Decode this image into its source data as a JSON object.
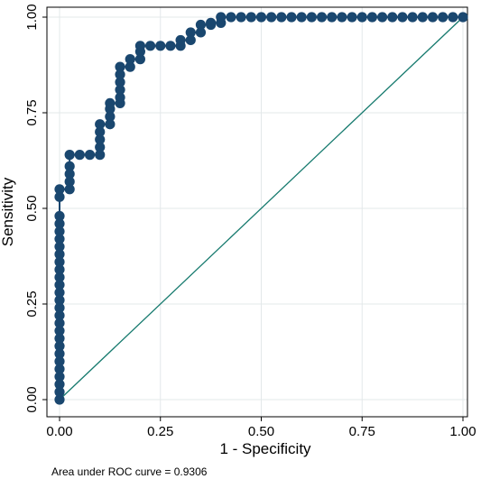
{
  "chart_data": {
    "type": "scatter",
    "title": "",
    "xlabel": "1 - Specificity",
    "ylabel": "Sensitivity",
    "xlim": [
      0,
      1
    ],
    "ylim": [
      0,
      1
    ],
    "x_ticks": [
      "0.00",
      "0.25",
      "0.50",
      "0.75",
      "1.00"
    ],
    "y_ticks": [
      "0.00",
      "0.25",
      "0.50",
      "0.75",
      "1.00"
    ],
    "grid": true,
    "legend": "none",
    "note": "Area under ROC curve = 0.9306",
    "series": [
      {
        "marker_color": "#1a476f",
        "line_color": "#1a476f",
        "points": [
          [
            0.0,
            0.0
          ],
          [
            0.0,
            0.02
          ],
          [
            0.0,
            0.04
          ],
          [
            0.0,
            0.06
          ],
          [
            0.0,
            0.08
          ],
          [
            0.0,
            0.1
          ],
          [
            0.0,
            0.12
          ],
          [
            0.0,
            0.14
          ],
          [
            0.0,
            0.16
          ],
          [
            0.0,
            0.18
          ],
          [
            0.0,
            0.2
          ],
          [
            0.0,
            0.22
          ],
          [
            0.0,
            0.24
          ],
          [
            0.0,
            0.26
          ],
          [
            0.0,
            0.28
          ],
          [
            0.0,
            0.3
          ],
          [
            0.0,
            0.32
          ],
          [
            0.0,
            0.34
          ],
          [
            0.0,
            0.36
          ],
          [
            0.0,
            0.38
          ],
          [
            0.0,
            0.4
          ],
          [
            0.0,
            0.42
          ],
          [
            0.0,
            0.44
          ],
          [
            0.0,
            0.46
          ],
          [
            0.0,
            0.48
          ],
          [
            0.0,
            0.53
          ],
          [
            0.0,
            0.55
          ],
          [
            0.025,
            0.55
          ],
          [
            0.025,
            0.57
          ],
          [
            0.025,
            0.59
          ],
          [
            0.025,
            0.61
          ],
          [
            0.025,
            0.64
          ],
          [
            0.05,
            0.64
          ],
          [
            0.075,
            0.64
          ],
          [
            0.1,
            0.64
          ],
          [
            0.1,
            0.66
          ],
          [
            0.1,
            0.68
          ],
          [
            0.1,
            0.7
          ],
          [
            0.1,
            0.72
          ],
          [
            0.125,
            0.72
          ],
          [
            0.125,
            0.74
          ],
          [
            0.125,
            0.76
          ],
          [
            0.125,
            0.775
          ],
          [
            0.15,
            0.775
          ],
          [
            0.15,
            0.79
          ],
          [
            0.15,
            0.81
          ],
          [
            0.15,
            0.83
          ],
          [
            0.15,
            0.85
          ],
          [
            0.15,
            0.87
          ],
          [
            0.175,
            0.87
          ],
          [
            0.175,
            0.89
          ],
          [
            0.2,
            0.89
          ],
          [
            0.2,
            0.91
          ],
          [
            0.2,
            0.925
          ],
          [
            0.225,
            0.925
          ],
          [
            0.25,
            0.925
          ],
          [
            0.275,
            0.925
          ],
          [
            0.3,
            0.925
          ],
          [
            0.3,
            0.94
          ],
          [
            0.325,
            0.94
          ],
          [
            0.325,
            0.96
          ],
          [
            0.35,
            0.96
          ],
          [
            0.35,
            0.98
          ],
          [
            0.375,
            0.98
          ],
          [
            0.375,
            0.985
          ],
          [
            0.4,
            0.985
          ],
          [
            0.4,
            1.0
          ],
          [
            0.425,
            1.0
          ],
          [
            0.45,
            1.0
          ],
          [
            0.475,
            1.0
          ],
          [
            0.5,
            1.0
          ],
          [
            0.525,
            1.0
          ],
          [
            0.55,
            1.0
          ],
          [
            0.575,
            1.0
          ],
          [
            0.6,
            1.0
          ],
          [
            0.625,
            1.0
          ],
          [
            0.65,
            1.0
          ],
          [
            0.675,
            1.0
          ],
          [
            0.7,
            1.0
          ],
          [
            0.725,
            1.0
          ],
          [
            0.75,
            1.0
          ],
          [
            0.775,
            1.0
          ],
          [
            0.8,
            1.0
          ],
          [
            0.825,
            1.0
          ],
          [
            0.85,
            1.0
          ],
          [
            0.875,
            1.0
          ],
          [
            0.9,
            1.0
          ],
          [
            0.925,
            1.0
          ],
          [
            0.95,
            1.0
          ],
          [
            0.975,
            1.0
          ],
          [
            1.0,
            1.0
          ]
        ]
      },
      {
        "line_color": "#167a6e",
        "points": [
          [
            0,
            0
          ],
          [
            1,
            1
          ]
        ]
      }
    ]
  }
}
